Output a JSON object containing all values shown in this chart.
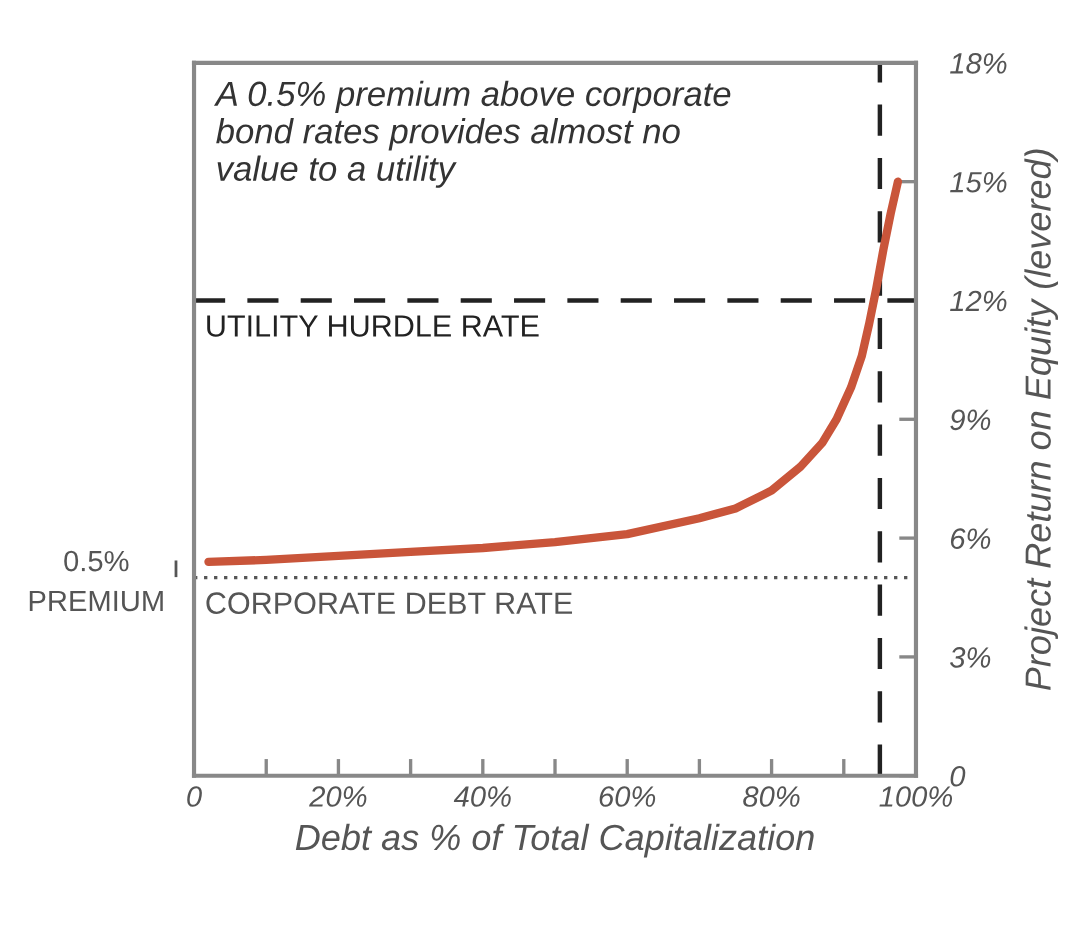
{
  "chart_data": {
    "type": "line",
    "xlabel": "Debt as % of Total Capitalization",
    "ylabel": "Project Return on Equity (levered)",
    "x": [
      2,
      10,
      20,
      30,
      40,
      50,
      60,
      70,
      75,
      80,
      84,
      87,
      89,
      91,
      92.5,
      93.5,
      94.5,
      95.5,
      96.5,
      97.5
    ],
    "series": [
      {
        "color": "#c9553a",
        "values": [
          5.4,
          5.45,
          5.55,
          5.65,
          5.75,
          5.9,
          6.1,
          6.5,
          6.75,
          7.2,
          7.8,
          8.4,
          9.0,
          9.8,
          10.6,
          11.4,
          12.3,
          13.3,
          14.2,
          15.0
        ]
      }
    ],
    "xlim": [
      0,
      100
    ],
    "ylim": [
      0,
      18
    ],
    "xticks": [
      0,
      {
        "value": 10,
        "label": null
      },
      {
        "value": 20,
        "label": "20%"
      },
      {
        "value": 30,
        "label": null
      },
      {
        "value": 40,
        "label": "40%"
      },
      {
        "value": 50,
        "label": null
      },
      {
        "value": 60,
        "label": "60%"
      },
      {
        "value": 70,
        "label": null
      },
      {
        "value": 80,
        "label": "80%"
      },
      {
        "value": 90,
        "label": null
      },
      {
        "value": 100,
        "label": "100%"
      }
    ],
    "yticks": [
      0,
      {
        "value": 3,
        "label": "3%"
      },
      {
        "value": 6,
        "label": "6%"
      },
      {
        "value": 9,
        "label": "9%"
      },
      {
        "value": 12,
        "label": "12%"
      },
      {
        "value": 15,
        "label": "15%"
      },
      {
        "value": 18,
        "label": "18%"
      }
    ],
    "ref_lines": [
      {
        "axis": "y",
        "value": 12,
        "label": "UTILITY HURDLE RATE",
        "color": "#222222",
        "line_style": "dashed"
      },
      {
        "axis": "y",
        "value": 5,
        "label": "CORPORATE DEBT RATE",
        "color": "#555555",
        "line_style": "dotted"
      },
      {
        "axis": "x",
        "value": 95,
        "color": "#222222",
        "line_style": "dashed"
      }
    ],
    "annotations": [
      "A 0.5% premium above corporate\nbond rates provides almost no\nvalue to a utility",
      "0.5%\nPREMIUM"
    ],
    "grid": false,
    "legend": false,
    "marker": "none",
    "line_style": "solid"
  }
}
